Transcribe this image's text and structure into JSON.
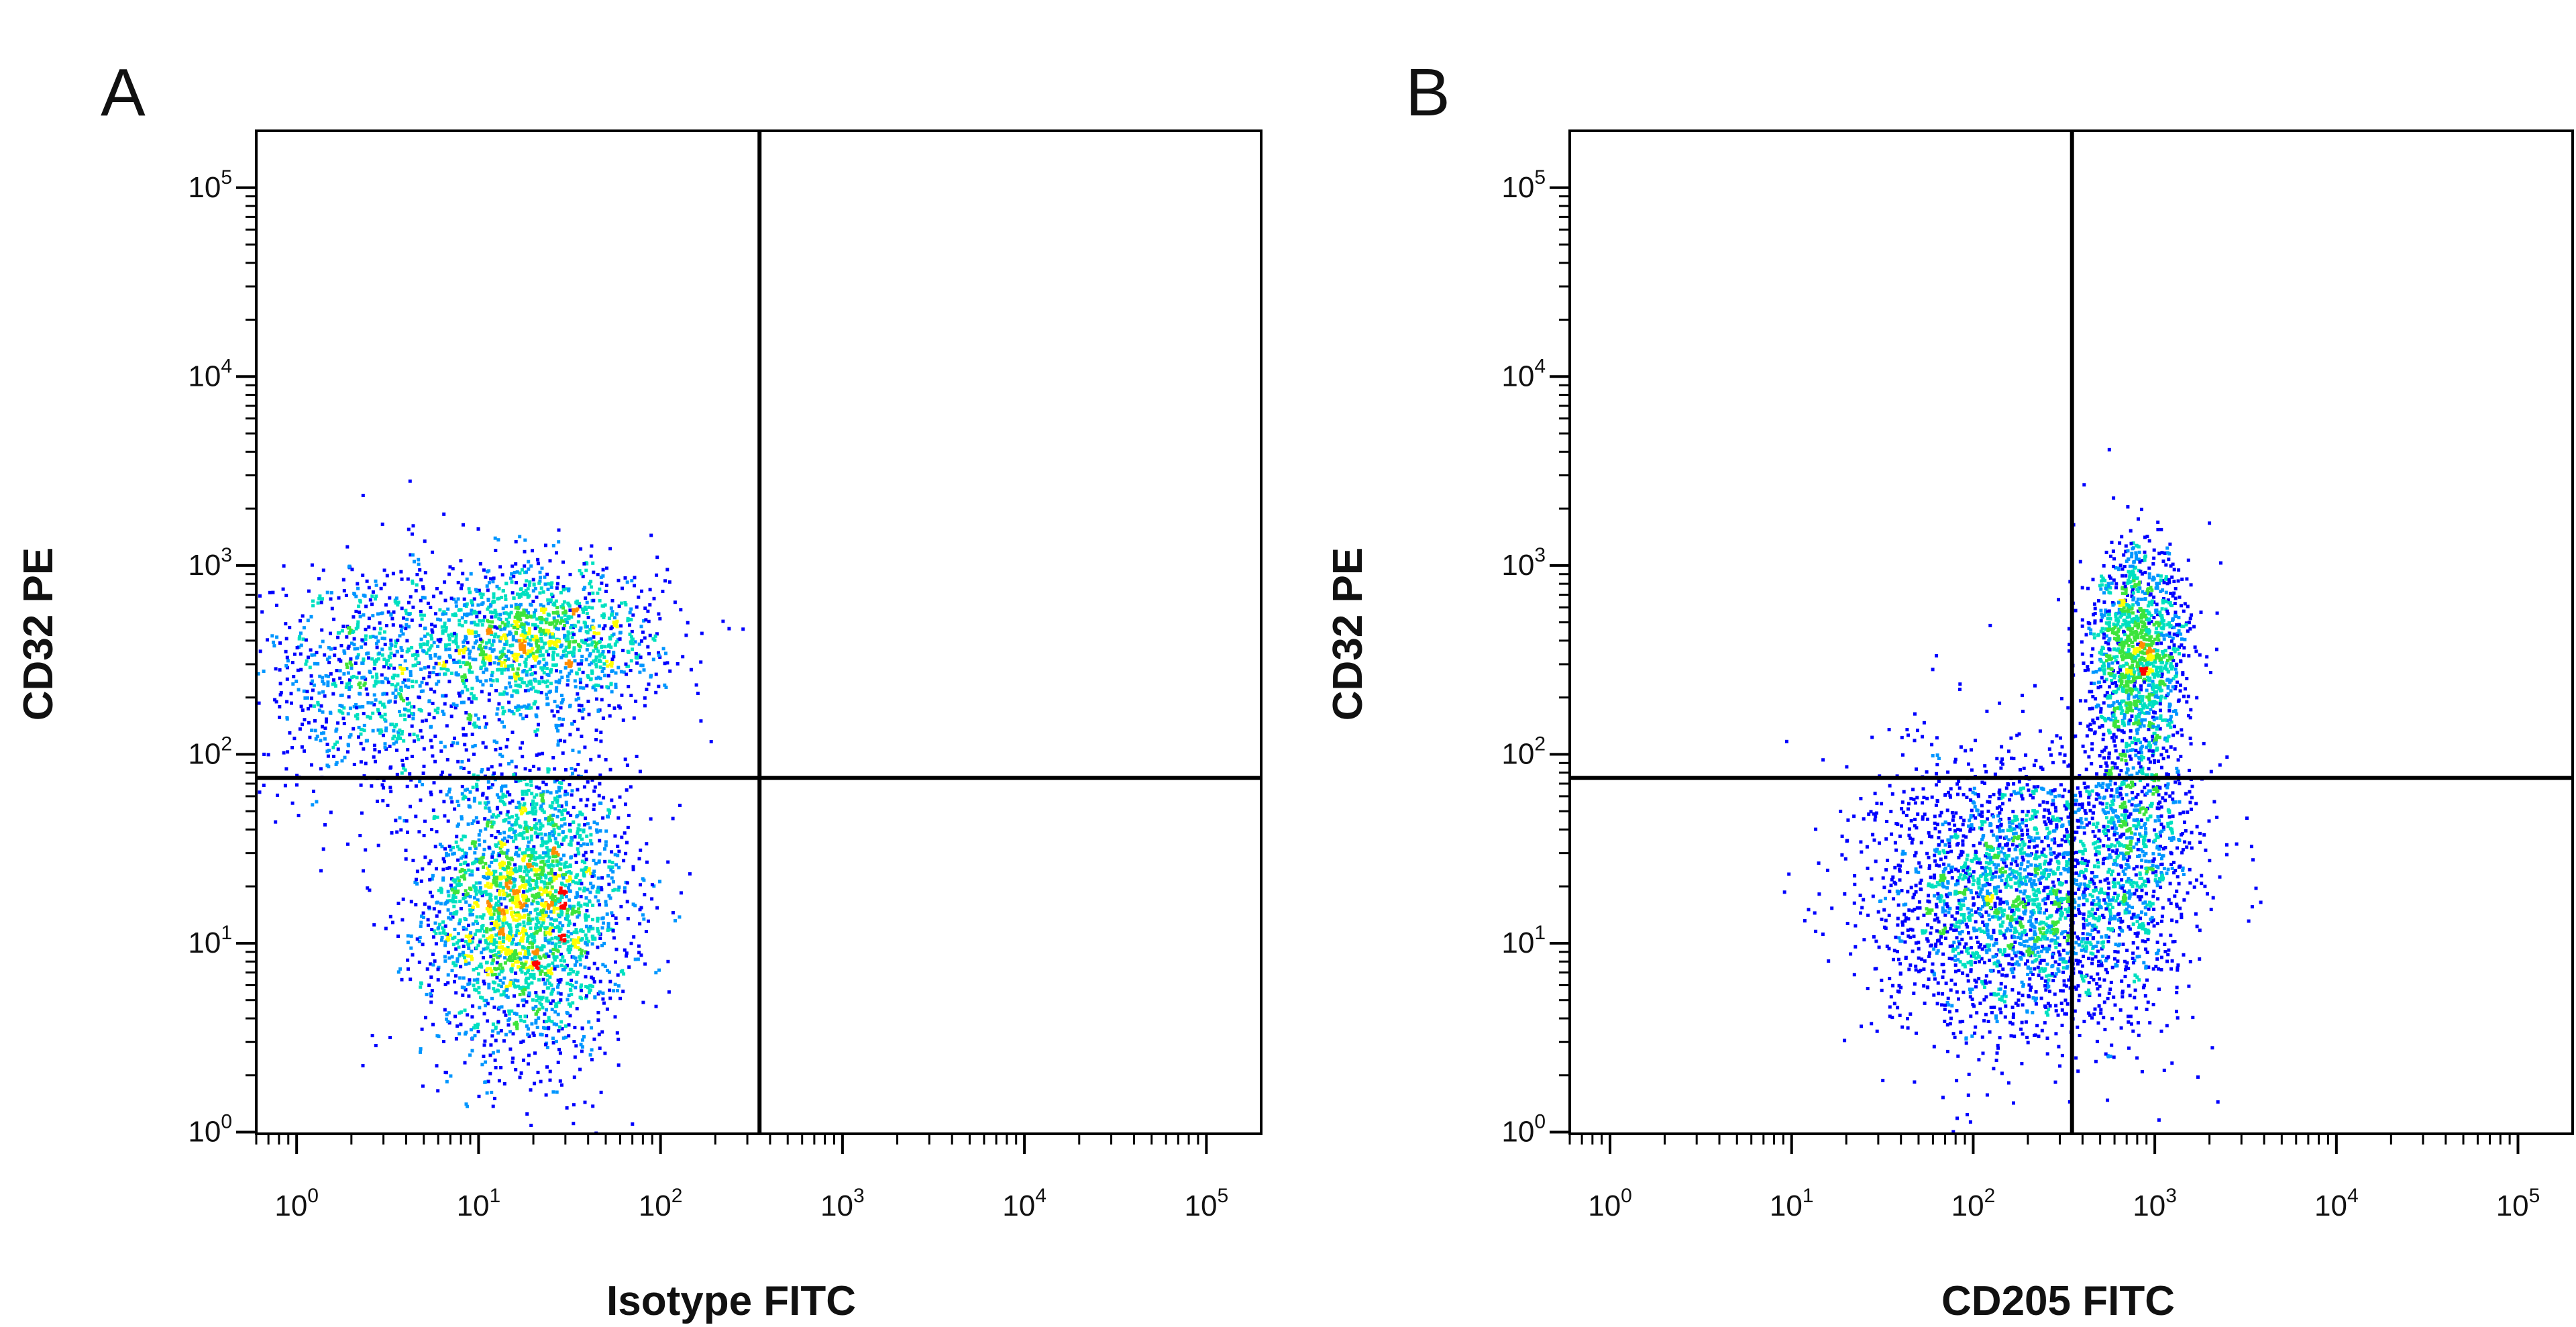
{
  "chart_data": [
    {
      "type": "scatter",
      "panel_label": "A",
      "xlabel": "Isotype FITC",
      "ylabel": "CD32 PE",
      "x_scale": "log",
      "y_scale": "log",
      "xlim": [
        0.6,
        200000
      ],
      "ylim": [
        0.98,
        200000
      ],
      "x_ticks": [
        {
          "base": "10",
          "exp": "0",
          "value": 1
        },
        {
          "base": "10",
          "exp": "1",
          "value": 10
        },
        {
          "base": "10",
          "exp": "2",
          "value": 100
        },
        {
          "base": "10",
          "exp": "3",
          "value": 1000
        },
        {
          "base": "10",
          "exp": "4",
          "value": 10000
        },
        {
          "base": "10",
          "exp": "5",
          "value": 100000
        }
      ],
      "y_ticks": [
        {
          "base": "10",
          "exp": "0",
          "value": 1
        },
        {
          "base": "10",
          "exp": "1",
          "value": 10
        },
        {
          "base": "10",
          "exp": "2",
          "value": 100
        },
        {
          "base": "10",
          "exp": "3",
          "value": 1000
        },
        {
          "base": "10",
          "exp": "4",
          "value": 10000
        },
        {
          "base": "10",
          "exp": "5",
          "value": 100000
        }
      ],
      "quadrant_gate": {
        "x": 350,
        "y": 75
      },
      "populations": [
        {
          "center_x": 18,
          "center_y": 16,
          "spread_log_x": 0.28,
          "spread_log_y": 0.4,
          "relative_density": 1.0
        },
        {
          "center_x": 20,
          "center_y": 400,
          "spread_log_x": 0.35,
          "spread_log_y": 0.2,
          "relative_density": 0.55
        },
        {
          "center_x": 2.5,
          "center_y": 250,
          "spread_log_x": 0.3,
          "spread_log_y": 0.32,
          "relative_density": 0.3
        }
      ],
      "color_scale": [
        "#00008b",
        "#0000ff",
        "#0096ff",
        "#00e0c0",
        "#3ce43c",
        "#ffff00",
        "#ff8c00",
        "#ff0000"
      ]
    },
    {
      "type": "scatter",
      "panel_label": "B",
      "xlabel": "CD205 FITC",
      "ylabel": "CD32 PE",
      "x_scale": "log",
      "y_scale": "log",
      "xlim": [
        0.6,
        200000
      ],
      "ylim": [
        0.98,
        200000
      ],
      "x_ticks": [
        {
          "base": "10",
          "exp": "0",
          "value": 1
        },
        {
          "base": "10",
          "exp": "1",
          "value": 10
        },
        {
          "base": "10",
          "exp": "2",
          "value": 100
        },
        {
          "base": "10",
          "exp": "3",
          "value": 1000
        },
        {
          "base": "10",
          "exp": "4",
          "value": 10000
        },
        {
          "base": "10",
          "exp": "5",
          "value": 100000
        }
      ],
      "y_ticks": [
        {
          "base": "10",
          "exp": "0",
          "value": 1
        },
        {
          "base": "10",
          "exp": "1",
          "value": 10
        },
        {
          "base": "10",
          "exp": "2",
          "value": 100
        },
        {
          "base": "10",
          "exp": "3",
          "value": 1000
        },
        {
          "base": "10",
          "exp": "4",
          "value": 10000
        },
        {
          "base": "10",
          "exp": "5",
          "value": 100000
        }
      ],
      "quadrant_gate": {
        "x": 350,
        "y": 75
      },
      "populations": [
        {
          "center_x": 180,
          "center_y": 18,
          "spread_log_x": 0.4,
          "spread_log_y": 0.38,
          "relative_density": 1.0
        },
        {
          "center_x": 800,
          "center_y": 350,
          "spread_log_x": 0.14,
          "spread_log_y": 0.28,
          "relative_density": 0.5
        },
        {
          "center_x": 800,
          "center_y": 40,
          "spread_log_x": 0.15,
          "spread_log_y": 0.35,
          "relative_density": 0.25
        }
      ],
      "color_scale": [
        "#00008b",
        "#0000ff",
        "#0096ff",
        "#00e0c0",
        "#3ce43c",
        "#ffff00",
        "#ff8c00",
        "#ff0000"
      ]
    }
  ]
}
